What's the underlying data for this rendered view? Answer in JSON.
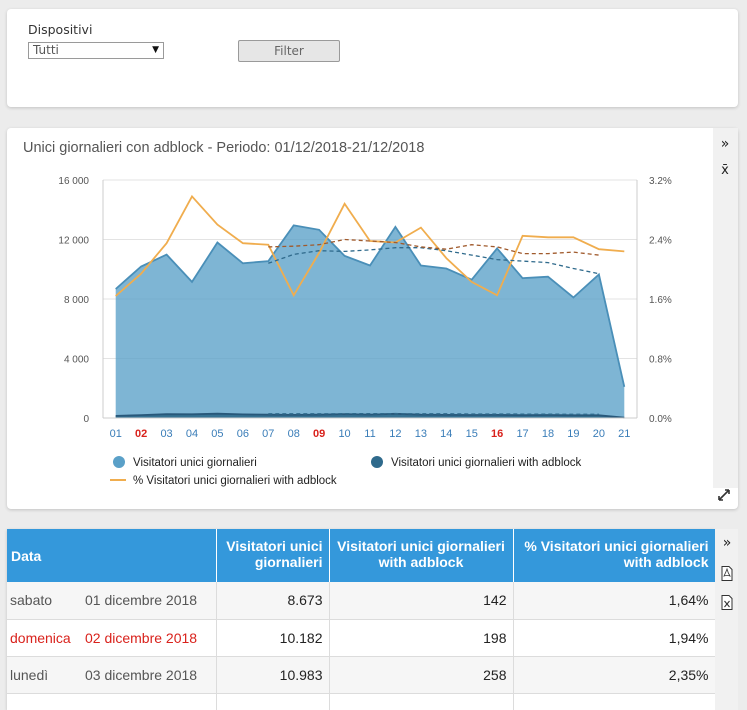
{
  "filter": {
    "label": "Dispositivi",
    "select_value": "Tutti",
    "button_label": "Filter"
  },
  "chart_card": {
    "title": "Unici giornalieri con adblock - Periodo: 01/12/2018-21/12/2018",
    "side_icons": [
      "»",
      "x̄"
    ],
    "expand_icon": "expand-icon"
  },
  "chart_data": {
    "type": "area",
    "categories": [
      "01",
      "02",
      "03",
      "04",
      "05",
      "06",
      "07",
      "08",
      "09",
      "10",
      "11",
      "12",
      "13",
      "14",
      "15",
      "16",
      "17",
      "18",
      "19",
      "20",
      "21"
    ],
    "highlight_categories": [
      "02",
      "09",
      "16"
    ],
    "y_left_ticks": [
      "16 000",
      "12 000",
      "8 000",
      "4 000",
      "0"
    ],
    "y_right_ticks": [
      "3.2%",
      "2.4%",
      "1.6%",
      "0.8%",
      "0.0%"
    ],
    "ylim_left": [
      0,
      16000
    ],
    "ylim_right": [
      0,
      3.2
    ],
    "series": [
      {
        "name": "Visitatori unici giornalieri",
        "axis": "left",
        "type": "area",
        "color": "#5aa0c8",
        "values": [
          8673,
          10182,
          10983,
          9150,
          11800,
          10400,
          10550,
          12950,
          12650,
          10900,
          10250,
          12850,
          10250,
          10050,
          9300,
          11400,
          9400,
          9500,
          8100,
          9650,
          2100
        ]
      },
      {
        "name": "Visitatori unici giornalieri with adblock",
        "axis": "left",
        "type": "area",
        "color": "#2f6a8c",
        "values": [
          142,
          198,
          258,
          250,
          290,
          240,
          220,
          210,
          220,
          260,
          230,
          280,
          220,
          210,
          200,
          210,
          190,
          200,
          180,
          180,
          20
        ]
      },
      {
        "name": "% Visitatori unici giornalieri with adblock",
        "axis": "right",
        "type": "line",
        "color": "#f0ad4e",
        "values": [
          1.64,
          1.94,
          2.35,
          2.98,
          2.6,
          2.35,
          2.33,
          1.65,
          2.22,
          2.88,
          2.38,
          2.36,
          2.56,
          2.15,
          1.83,
          1.65,
          2.45,
          2.43,
          2.43,
          2.27,
          2.24
        ]
      }
    ],
    "trend_lines": [
      {
        "color": "#2f6a8c",
        "values": [
          null,
          null,
          null,
          null,
          null,
          null,
          10400,
          11000,
          11250,
          11200,
          11300,
          11450,
          11450,
          11250,
          10950,
          10650,
          10550,
          10450,
          10050,
          9700,
          null
        ]
      },
      {
        "color": "#a05a2c",
        "values": [
          null,
          null,
          null,
          null,
          null,
          null,
          2.3,
          2.31,
          2.33,
          2.4,
          2.38,
          2.36,
          2.3,
          2.27,
          2.33,
          2.3,
          2.21,
          2.21,
          2.23,
          2.19,
          null
        ]
      },
      {
        "color": "#2f6a8c",
        "values": [
          null,
          null,
          null,
          null,
          null,
          null,
          280,
          280,
          280,
          290,
          290,
          290,
          280,
          280,
          270,
          270,
          260,
          260,
          250,
          250,
          null
        ]
      }
    ],
    "legend": [
      {
        "label": "Visitatori unici giornalieri",
        "marker": "circle",
        "color": "#5aa0c8"
      },
      {
        "label": "Visitatori unici giornalieri with adblock",
        "marker": "circle",
        "color": "#2f6a8c"
      },
      {
        "label": "% Visitatori unici giornalieri with adblock",
        "marker": "line",
        "color": "#f0ad4e"
      }
    ],
    "legend_position": "bottom",
    "grid": true
  },
  "table": {
    "headers": [
      "Data",
      "Visitatori unici giornalieri",
      "Visitatori unici giornalieri with adblock",
      "% Visitatori unici giornalieri with adblock"
    ],
    "rows": [
      {
        "weekday": "sabato",
        "date": "01 dicembre 2018",
        "visitors": "8.673",
        "adblock": "142",
        "percent": "1,64%",
        "holiday": false
      },
      {
        "weekday": "domenica",
        "date": "02 dicembre 2018",
        "visitors": "10.182",
        "adblock": "198",
        "percent": "1,94%",
        "holiday": true
      },
      {
        "weekday": "lunedì",
        "date": "03 dicembre 2018",
        "visitors": "10.983",
        "adblock": "258",
        "percent": "2,35%",
        "holiday": false
      }
    ],
    "side_icons": [
      "»",
      "pdf-icon",
      "excel-icon"
    ]
  }
}
